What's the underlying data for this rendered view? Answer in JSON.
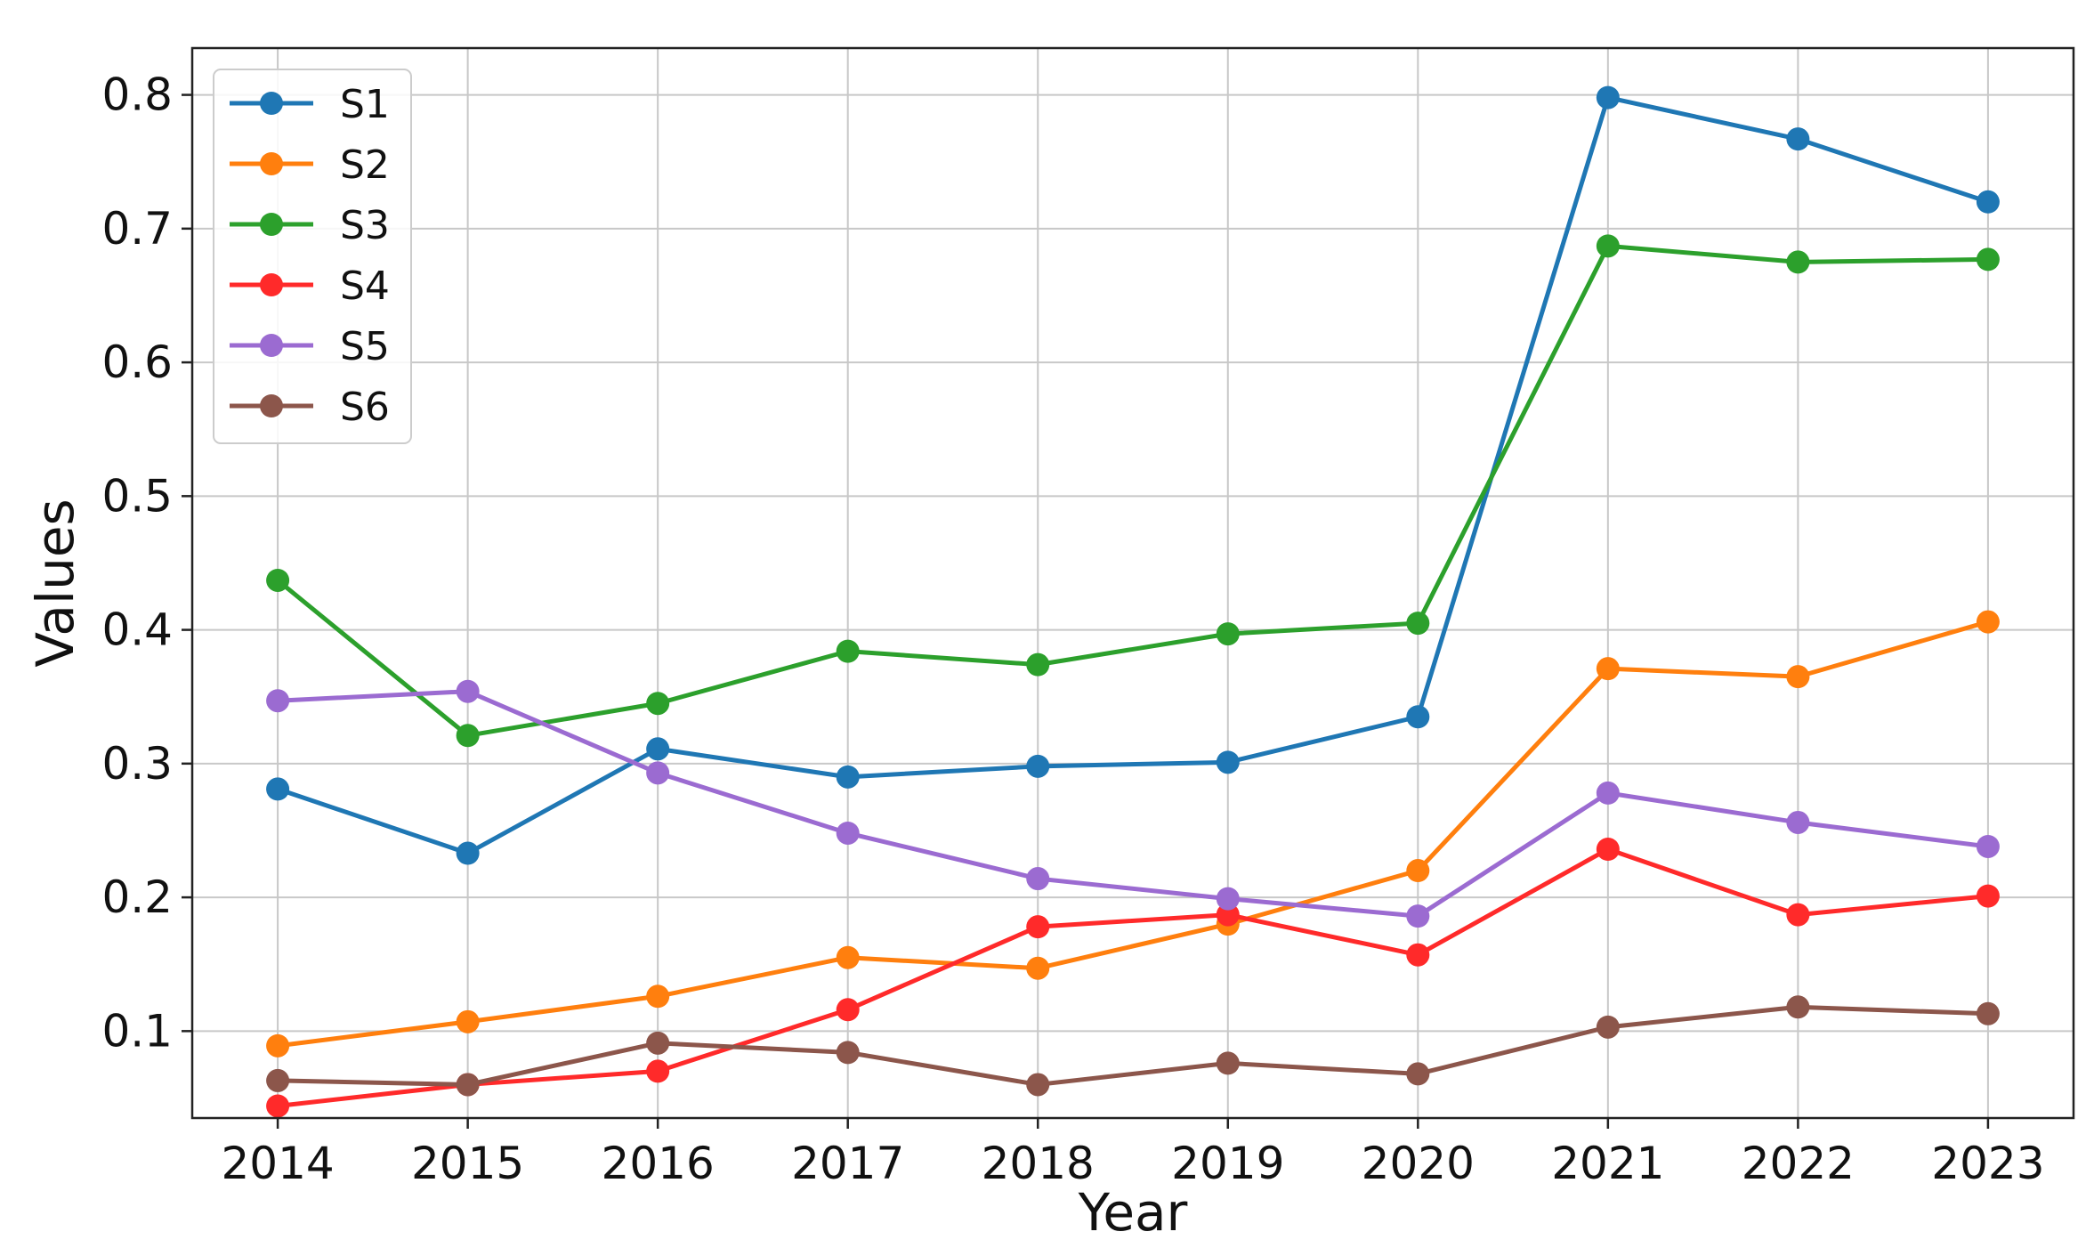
{
  "chart_data": {
    "type": "line",
    "xlabel": "Year",
    "ylabel": "Values",
    "x": [
      2014,
      2015,
      2016,
      2017,
      2018,
      2019,
      2020,
      2021,
      2022,
      2023
    ],
    "ylim": [
      0.035,
      0.835
    ],
    "yticks": [
      0.1,
      0.2,
      0.3,
      0.4,
      0.5,
      0.6,
      0.7,
      0.8
    ],
    "grid": true,
    "legend_position": "top-left",
    "series": [
      {
        "name": "S1",
        "color": "#1f77b4",
        "values": [
          0.281,
          0.233,
          0.311,
          0.29,
          0.298,
          0.301,
          0.335,
          0.798,
          0.767,
          0.72
        ]
      },
      {
        "name": "S2",
        "color": "#ff7f0e",
        "values": [
          0.089,
          0.107,
          0.126,
          0.155,
          0.147,
          0.18,
          0.22,
          0.371,
          0.365,
          0.406
        ]
      },
      {
        "name": "S3",
        "color": "#2ca02c",
        "values": [
          0.437,
          0.321,
          0.345,
          0.384,
          0.374,
          0.397,
          0.405,
          0.687,
          0.675,
          0.677
        ]
      },
      {
        "name": "S4",
        "color": "#ff2a2a",
        "values": [
          0.044,
          0.06,
          0.07,
          0.116,
          0.178,
          0.187,
          0.157,
          0.236,
          0.187,
          0.201
        ]
      },
      {
        "name": "S5",
        "color": "#9b6bd1",
        "values": [
          0.347,
          0.354,
          0.293,
          0.248,
          0.214,
          0.199,
          0.186,
          0.278,
          0.256,
          0.238
        ]
      },
      {
        "name": "S6",
        "color": "#8c564b",
        "values": [
          0.063,
          0.06,
          0.091,
          0.084,
          0.06,
          0.076,
          0.068,
          0.103,
          0.118,
          0.113
        ]
      }
    ]
  }
}
